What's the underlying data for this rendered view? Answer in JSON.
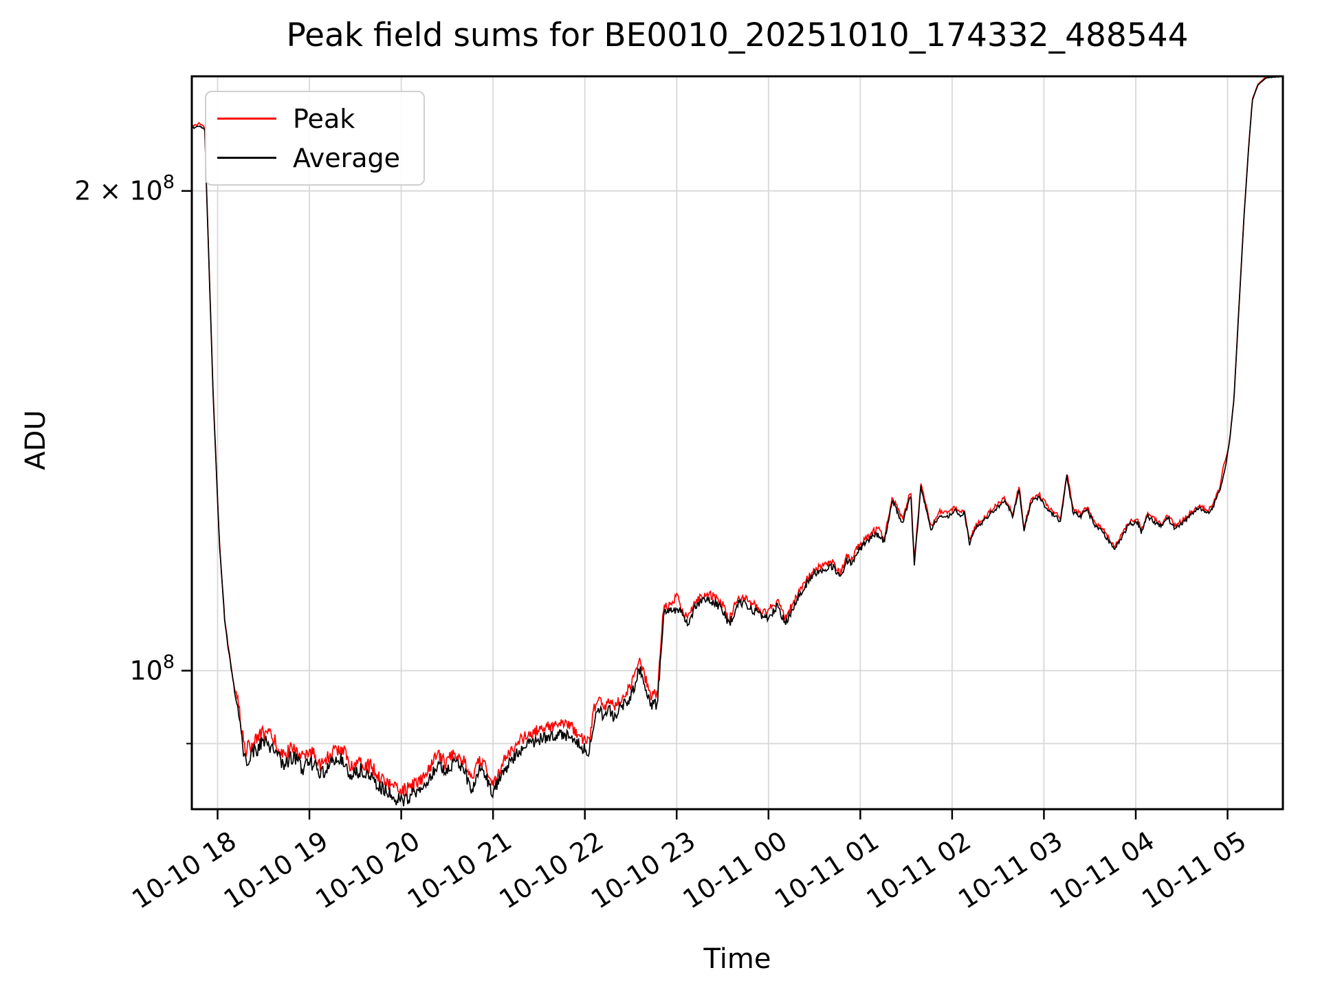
{
  "title": "Peak field sums for BE0010_20251010_174332_488544",
  "xlabel": "Time",
  "ylabel": "ADU",
  "legend": {
    "items": [
      {
        "label": "Peak",
        "color": "#ff0000"
      },
      {
        "label": "Average",
        "color": "#000000"
      }
    ]
  },
  "colors": {
    "grid": "#d8d8d8",
    "spine": "#000000",
    "background": "#ffffff",
    "tick_label": "#000000"
  },
  "chart_data": {
    "type": "line",
    "title": "Peak field sums for BE0010_20251010_174332_488544",
    "xlabel": "Time",
    "ylabel": "ADU",
    "yscale": "log",
    "grid": true,
    "legend_position": "upper left",
    "x_unit": "decimal hours from 2025-10-10 00:00 (24+ = Oct 11)",
    "xlim": [
      17.705,
      29.607
    ],
    "ylim": [
      81800000.0,
      236000000.0
    ],
    "x_ticks": [
      {
        "t": 18,
        "label": "10-10 18"
      },
      {
        "t": 19,
        "label": "10-10 19"
      },
      {
        "t": 20,
        "label": "10-10 20"
      },
      {
        "t": 21,
        "label": "10-10 21"
      },
      {
        "t": 22,
        "label": "10-10 22"
      },
      {
        "t": 23,
        "label": "10-10 23"
      },
      {
        "t": 24,
        "label": "10-11 00"
      },
      {
        "t": 25,
        "label": "10-11 01"
      },
      {
        "t": 26,
        "label": "10-11 02"
      },
      {
        "t": 27,
        "label": "10-11 03"
      },
      {
        "t": 28,
        "label": "10-11 04"
      },
      {
        "t": 29,
        "label": "10-11 05"
      }
    ],
    "y_ticks": [
      {
        "v": 200000000.0,
        "label": "2 × 10⁸",
        "base": "2 × 10",
        "exp": "8",
        "minor": false
      },
      {
        "v": 100000000.0,
        "label": "10⁸",
        "base": "10",
        "exp": "8",
        "minor": false
      },
      {
        "v": 90000000.0,
        "label": "",
        "base": "",
        "exp": "",
        "minor": true
      }
    ],
    "series": [
      {
        "name": "Peak",
        "color": "#ff0000",
        "derived_from_average": {
          "ratio_eras": [
            {
              "t0": 17.7,
              "t1": 18.2,
              "ratio": 1.003
            },
            {
              "t0": 18.2,
              "t1": 22.85,
              "ratio": 1.014
            },
            {
              "t0": 22.85,
              "t1": 24.3,
              "ratio": 1.008
            },
            {
              "t0": 24.3,
              "t1": 26.0,
              "ratio": 1.006
            },
            {
              "t0": 26.0,
              "t1": 28.9,
              "ratio": 1.004
            },
            {
              "t0": 28.9,
              "t1": 29.61,
              "ratio": 1.0015
            }
          ],
          "extra_spikes": [
            {
              "t": 23.0,
              "v": 111500000.0
            },
            {
              "t": 28.955,
              "v": 134500000.0
            }
          ]
        }
      },
      {
        "name": "Average",
        "color": "#000000",
        "points": [
          [
            17.726,
            219000000.0
          ],
          [
            17.8,
            219700000.0
          ],
          [
            17.86,
            218500000.0
          ],
          [
            17.88,
            200000000.0
          ],
          [
            17.95,
            150000000.0
          ],
          [
            18.02,
            120000000.0
          ],
          [
            18.08,
            107000000.0
          ],
          [
            18.15,
            100000000.0
          ],
          [
            18.25,
            92000000.0
          ],
          [
            18.3,
            87800000.0
          ],
          [
            18.4,
            89000000.0
          ],
          [
            18.5,
            90200000.0
          ],
          [
            18.6,
            89500000.0
          ],
          [
            18.72,
            87000000.0
          ],
          [
            18.83,
            88500000.0
          ],
          [
            18.93,
            86800000.0
          ],
          [
            19.05,
            87600000.0
          ],
          [
            19.13,
            86000000.0
          ],
          [
            19.25,
            87500000.0
          ],
          [
            19.35,
            88300000.0
          ],
          [
            19.44,
            86000000.0
          ],
          [
            19.55,
            86600000.0
          ],
          [
            19.67,
            85800000.0
          ],
          [
            19.8,
            84300000.0
          ],
          [
            19.92,
            83300000.0
          ],
          [
            20.05,
            83000000.0
          ],
          [
            20.15,
            83600000.0
          ],
          [
            20.25,
            84600000.0
          ],
          [
            20.33,
            86000000.0
          ],
          [
            20.4,
            87400000.0
          ],
          [
            20.48,
            86300000.0
          ],
          [
            20.57,
            87600000.0
          ],
          [
            20.68,
            86700000.0
          ],
          [
            20.77,
            84000000.0
          ],
          [
            20.85,
            86800000.0
          ],
          [
            20.93,
            85700000.0
          ],
          [
            20.99,
            83700000.0
          ],
          [
            21.07,
            85500000.0
          ],
          [
            21.17,
            87500000.0
          ],
          [
            21.28,
            89000000.0
          ],
          [
            21.4,
            90000000.0
          ],
          [
            21.52,
            90600000.0
          ],
          [
            21.63,
            91000000.0
          ],
          [
            21.75,
            91300000.0
          ],
          [
            21.87,
            90800000.0
          ],
          [
            21.97,
            89500000.0
          ],
          [
            22.05,
            89000000.0
          ],
          [
            22.1,
            93200000.0
          ],
          [
            22.15,
            94500000.0
          ],
          [
            22.22,
            93500000.0
          ],
          [
            22.27,
            94500000.0
          ],
          [
            22.32,
            93300000.0
          ],
          [
            22.4,
            95000000.0
          ],
          [
            22.5,
            96300000.0
          ],
          [
            22.6,
            100300000.0
          ],
          [
            22.66,
            97500000.0
          ],
          [
            22.72,
            95200000.0
          ],
          [
            22.79,
            95300000.0
          ],
          [
            22.86,
            108800000.0
          ],
          [
            22.93,
            109000000.0
          ],
          [
            23.0,
            109300000.0
          ],
          [
            23.05,
            108800000.0
          ],
          [
            23.12,
            106800000.0
          ],
          [
            23.2,
            109600000.0
          ],
          [
            23.3,
            110800000.0
          ],
          [
            23.4,
            110500000.0
          ],
          [
            23.5,
            109200000.0
          ],
          [
            23.57,
            106800000.0
          ],
          [
            23.67,
            110300000.0
          ],
          [
            23.75,
            110000000.0
          ],
          [
            23.85,
            109000000.0
          ],
          [
            23.95,
            107800000.0
          ],
          [
            24.0,
            108200000.0
          ],
          [
            24.1,
            109800000.0
          ],
          [
            24.18,
            107200000.0
          ],
          [
            24.26,
            109000000.0
          ],
          [
            24.34,
            111500000.0
          ],
          [
            24.42,
            113500000.0
          ],
          [
            24.5,
            115000000.0
          ],
          [
            24.6,
            115800000.0
          ],
          [
            24.7,
            116300000.0
          ],
          [
            24.78,
            114400000.0
          ],
          [
            24.85,
            117200000.0
          ],
          [
            24.91,
            116800000.0
          ],
          [
            24.97,
            118800000.0
          ],
          [
            25.05,
            120200000.0
          ],
          [
            25.13,
            121500000.0
          ],
          [
            25.2,
            121800000.0
          ],
          [
            25.26,
            120300000.0
          ],
          [
            25.35,
            127800000.0
          ],
          [
            25.46,
            123700000.0
          ],
          [
            25.55,
            129000000.0
          ],
          [
            25.588,
            116500000.0
          ],
          [
            25.66,
            130300000.0
          ],
          [
            25.77,
            122400000.0
          ],
          [
            25.86,
            125200000.0
          ],
          [
            25.95,
            124800000.0
          ],
          [
            26.03,
            126200000.0
          ],
          [
            26.08,
            125000000.0
          ],
          [
            26.13,
            125800000.0
          ],
          [
            26.19,
            120200000.0
          ],
          [
            26.26,
            123000000.0
          ],
          [
            26.35,
            124200000.0
          ],
          [
            26.45,
            126000000.0
          ],
          [
            26.57,
            127800000.0
          ],
          [
            26.66,
            125000000.0
          ],
          [
            26.73,
            130100000.0
          ],
          [
            26.78,
            122500000.0
          ],
          [
            26.87,
            127800000.0
          ],
          [
            26.95,
            128500000.0
          ],
          [
            27.05,
            126000000.0
          ],
          [
            27.13,
            125000000.0
          ],
          [
            27.18,
            124000000.0
          ],
          [
            27.25,
            132500000.0
          ],
          [
            27.32,
            125600000.0
          ],
          [
            27.4,
            125000000.0
          ],
          [
            27.47,
            126200000.0
          ],
          [
            27.55,
            123500000.0
          ],
          [
            27.65,
            122000000.0
          ],
          [
            27.77,
            119000000.0
          ],
          [
            27.87,
            122000000.0
          ],
          [
            27.93,
            123500000.0
          ],
          [
            28.02,
            124000000.0
          ],
          [
            28.06,
            122100000.0
          ],
          [
            28.13,
            125000000.0
          ],
          [
            28.2,
            124000000.0
          ],
          [
            28.28,
            123200000.0
          ],
          [
            28.35,
            124600000.0
          ],
          [
            28.43,
            122800000.0
          ],
          [
            28.52,
            124000000.0
          ],
          [
            28.62,
            125500000.0
          ],
          [
            28.7,
            126600000.0
          ],
          [
            28.78,
            125300000.0
          ],
          [
            28.85,
            127000000.0
          ],
          [
            28.92,
            130000000.0
          ],
          [
            28.97,
            133500000.0
          ],
          [
            29.02,
            139000000.0
          ],
          [
            29.07,
            148000000.0
          ],
          [
            29.12,
            167400000.0
          ],
          [
            29.18,
            193000000.0
          ],
          [
            29.23,
            213000000.0
          ],
          [
            29.27,
            228000000.0
          ],
          [
            29.33,
            233000000.0
          ],
          [
            29.42,
            235500000.0
          ],
          [
            29.61,
            236000000.0
          ]
        ]
      }
    ],
    "noise_eras": [
      {
        "t0": 17.7,
        "t1": 17.88,
        "amp": 0.0015
      },
      {
        "t0": 17.88,
        "t1": 18.22,
        "amp": 0.0025
      },
      {
        "t0": 18.22,
        "t1": 20.15,
        "amp": 0.011
      },
      {
        "t0": 20.15,
        "t1": 21.55,
        "amp": 0.009
      },
      {
        "t0": 21.55,
        "t1": 22.82,
        "amp": 0.0085
      },
      {
        "t0": 22.82,
        "t1": 24.3,
        "amp": 0.006
      },
      {
        "t0": 24.3,
        "t1": 25.28,
        "amp": 0.005
      },
      {
        "t0": 25.28,
        "t1": 26.05,
        "amp": 0.003
      },
      {
        "t0": 26.05,
        "t1": 28.9,
        "amp": 0.0032
      },
      {
        "t0": 28.9,
        "t1": 29.15,
        "amp": 0.0012
      },
      {
        "t0": 29.15,
        "t1": 29.61,
        "amp": 0.0004
      }
    ]
  }
}
